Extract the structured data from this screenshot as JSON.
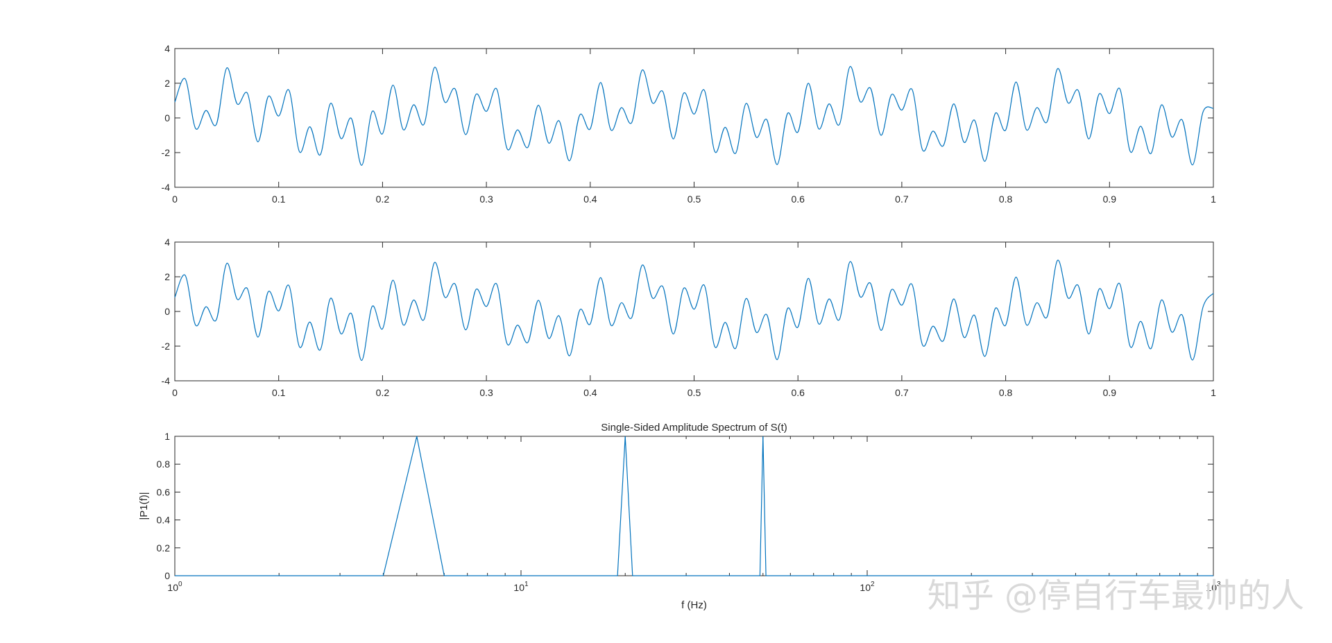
{
  "chart_data": [
    {
      "type": "line",
      "title": "",
      "xlabel": "",
      "ylabel": "",
      "xlim": [
        0,
        1
      ],
      "ylim": [
        -4,
        4
      ],
      "xticks": [
        0,
        0.1,
        0.2,
        0.3,
        0.4,
        0.5,
        0.6,
        0.7,
        0.8,
        0.9,
        1
      ],
      "xtick_labels": [
        "0",
        "0.1",
        "0.2",
        "0.3",
        "0.4",
        "0.5",
        "0.6",
        "0.7",
        "0.8",
        "0.9",
        "1"
      ],
      "yticks": [
        -4,
        -2,
        0,
        2,
        4
      ],
      "ytick_labels": [
        "-4",
        "-2",
        "0",
        "2",
        "4"
      ],
      "grid": false,
      "color": "#0072bd",
      "series": [
        {
          "x": [
            0,
            0.01,
            0.02,
            0.03,
            0.04,
            0.05,
            0.06,
            0.07,
            0.08,
            0.09,
            0.1,
            0.11,
            0.12,
            0.13,
            0.14,
            0.15,
            0.16,
            0.17,
            0.18,
            0.19,
            0.2,
            0.21,
            0.22,
            0.23,
            0.24,
            0.25,
            0.26,
            0.27,
            0.28,
            0.29,
            0.3,
            0.31,
            0.32,
            0.33,
            0.34,
            0.35,
            0.36,
            0.37,
            0.38,
            0.39,
            0.4,
            0.41,
            0.42,
            0.43,
            0.44,
            0.45,
            0.46,
            0.47,
            0.48,
            0.49,
            0.5,
            0.51,
            0.52,
            0.53,
            0.54,
            0.55,
            0.56,
            0.57,
            0.58,
            0.59,
            0.6,
            0.61,
            0.62,
            0.63,
            0.64,
            0.65,
            0.66,
            0.67,
            0.68,
            0.69,
            0.7,
            0.71,
            0.72,
            0.73,
            0.74,
            0.75,
            0.76,
            0.77,
            0.78,
            0.79,
            0.8,
            0.81,
            0.82,
            0.83,
            0.84,
            0.85,
            0.86,
            0.87,
            0.88,
            0.89,
            0.9,
            0.91,
            0.92,
            0.93,
            0.94,
            0.95,
            0.96,
            0.97,
            0.98,
            0.99,
            1
          ],
          "y": [
            0.91,
            2.25,
            -0.61,
            0.43,
            -0.37,
            2.88,
            0.81,
            1.41,
            -1.38,
            1.24,
            0.11,
            1.59,
            -1.95,
            -0.51,
            -2.13,
            0.84,
            -1.19,
            -0.03,
            -2.73,
            0.37,
            -0.91,
            1.89,
            -0.68,
            0.76,
            -0.36,
            2.91,
            0.91,
            1.66,
            -0.96,
            1.36,
            0.38,
            1.66,
            -1.78,
            -0.69,
            -1.69,
            0.73,
            -1.45,
            -0.17,
            -2.47,
            0.18,
            -0.63,
            2.04,
            -0.7,
            0.59,
            -0.26,
            2.76,
            0.86,
            1.51,
            -1.21,
            1.43,
            0.22,
            1.58,
            -1.95,
            -0.54,
            -2.04,
            0.83,
            -1.12,
            -0.1,
            -2.69,
            0.26,
            -0.81,
            2.0,
            -0.63,
            0.81,
            -0.37,
            2.95,
            0.93,
            1.7,
            -1.0,
            1.34,
            0.45,
            1.63,
            -1.85,
            -0.76,
            -1.6,
            0.81,
            -1.41,
            -0.13,
            -2.5,
            0.26,
            -0.7,
            2.07,
            -0.68,
            0.59,
            -0.21,
            2.84,
            0.87,
            1.57,
            -1.21,
            1.38,
            0.25,
            1.67,
            -1.94,
            -0.48,
            -2.05,
            0.75,
            -1.1,
            -0.12,
            -2.71,
            0.34,
            0.55
          ]
        }
      ]
    },
    {
      "type": "line",
      "title": "",
      "xlabel": "",
      "ylabel": "",
      "xlim": [
        0,
        1
      ],
      "ylim": [
        -4,
        4
      ],
      "xticks": [
        0,
        0.1,
        0.2,
        0.3,
        0.4,
        0.5,
        0.6,
        0.7,
        0.8,
        0.9,
        1
      ],
      "xtick_labels": [
        "0",
        "0.1",
        "0.2",
        "0.3",
        "0.4",
        "0.5",
        "0.6",
        "0.7",
        "0.8",
        "0.9",
        "1"
      ],
      "yticks": [
        -4,
        -2,
        0,
        2,
        4
      ],
      "ytick_labels": [
        "-4",
        "-2",
        "0",
        "2",
        "4"
      ],
      "grid": false,
      "color": "#0072bd",
      "series": [
        {
          "x": [
            0,
            0.01,
            0.02,
            0.03,
            0.04,
            0.05,
            0.06,
            0.07,
            0.08,
            0.09,
            0.1,
            0.11,
            0.12,
            0.13,
            0.14,
            0.15,
            0.16,
            0.17,
            0.18,
            0.19,
            0.2,
            0.21,
            0.22,
            0.23,
            0.24,
            0.25,
            0.26,
            0.27,
            0.28,
            0.29,
            0.3,
            0.31,
            0.32,
            0.33,
            0.34,
            0.35,
            0.36,
            0.37,
            0.38,
            0.39,
            0.4,
            0.41,
            0.42,
            0.43,
            0.44,
            0.45,
            0.46,
            0.47,
            0.48,
            0.49,
            0.5,
            0.51,
            0.52,
            0.53,
            0.54,
            0.55,
            0.56,
            0.57,
            0.58,
            0.59,
            0.6,
            0.61,
            0.62,
            0.63,
            0.64,
            0.65,
            0.66,
            0.67,
            0.68,
            0.69,
            0.7,
            0.71,
            0.72,
            0.73,
            0.74,
            0.75,
            0.76,
            0.77,
            0.78,
            0.79,
            0.8,
            0.81,
            0.82,
            0.83,
            0.84,
            0.85,
            0.86,
            0.87,
            0.88,
            0.89,
            0.9,
            0.91,
            0.92,
            0.93,
            0.94,
            0.95,
            0.96,
            0.97,
            0.98,
            0.99,
            1
          ],
          "y": [
            0.81,
            2.08,
            -0.79,
            0.27,
            -0.47,
            2.77,
            0.71,
            1.3,
            -1.48,
            1.14,
            0.03,
            1.48,
            -2.04,
            -0.61,
            -2.22,
            0.76,
            -1.29,
            -0.12,
            -2.82,
            0.29,
            -1.0,
            1.8,
            -0.78,
            0.66,
            -0.46,
            2.82,
            0.82,
            1.57,
            -1.06,
            1.27,
            0.29,
            1.57,
            -1.87,
            -0.79,
            -1.78,
            0.64,
            -1.55,
            -0.26,
            -2.56,
            0.09,
            -0.72,
            1.95,
            -0.8,
            0.5,
            -0.35,
            2.67,
            0.77,
            1.42,
            -1.3,
            1.34,
            0.13,
            1.49,
            -2.04,
            -0.63,
            -2.13,
            0.74,
            -1.21,
            -0.19,
            -2.78,
            0.17,
            -0.9,
            1.91,
            -0.72,
            0.72,
            -0.46,
            2.86,
            0.84,
            1.61,
            -1.09,
            1.25,
            0.36,
            1.54,
            -1.94,
            -0.85,
            -1.69,
            0.72,
            -1.5,
            -0.22,
            -2.59,
            0.17,
            -0.79,
            1.98,
            -0.77,
            0.5,
            -0.3,
            2.95,
            0.78,
            1.48,
            -1.3,
            1.29,
            0.16,
            1.58,
            -2.03,
            -0.57,
            -2.14,
            0.66,
            -1.19,
            -0.21,
            -2.8,
            0.25,
            1.05
          ]
        }
      ]
    },
    {
      "type": "line",
      "title": "Single-Sided Amplitude Spectrum of S(t)",
      "xlabel": "f (Hz)",
      "ylabel": "|P1(f)|",
      "xscale": "log",
      "xlim": [
        1,
        1000
      ],
      "ylim": [
        0,
        1
      ],
      "xticks": [
        1,
        10,
        100,
        1000
      ],
      "xtick_labels": [
        {
          "base": "10",
          "exp": "0"
        },
        {
          "base": "10",
          "exp": "1"
        },
        {
          "base": "10",
          "exp": "2"
        },
        {
          "base": "10",
          "exp": "3"
        }
      ],
      "yticks": [
        0,
        0.2,
        0.4,
        0.6,
        0.8,
        1
      ],
      "ytick_labels": [
        "0",
        "0.2",
        "0.4",
        "0.6",
        "0.8",
        "1"
      ],
      "grid": false,
      "color": "#0072bd",
      "series": [
        {
          "x": [
            1,
            4,
            5,
            6,
            19,
            20,
            21,
            49,
            50,
            51,
            1000
          ],
          "y": [
            0,
            0,
            1,
            0,
            0,
            1,
            0,
            0,
            1,
            0,
            0
          ]
        }
      ]
    }
  ],
  "watermark": {
    "text": "知乎 @停自行车最帅的人"
  }
}
